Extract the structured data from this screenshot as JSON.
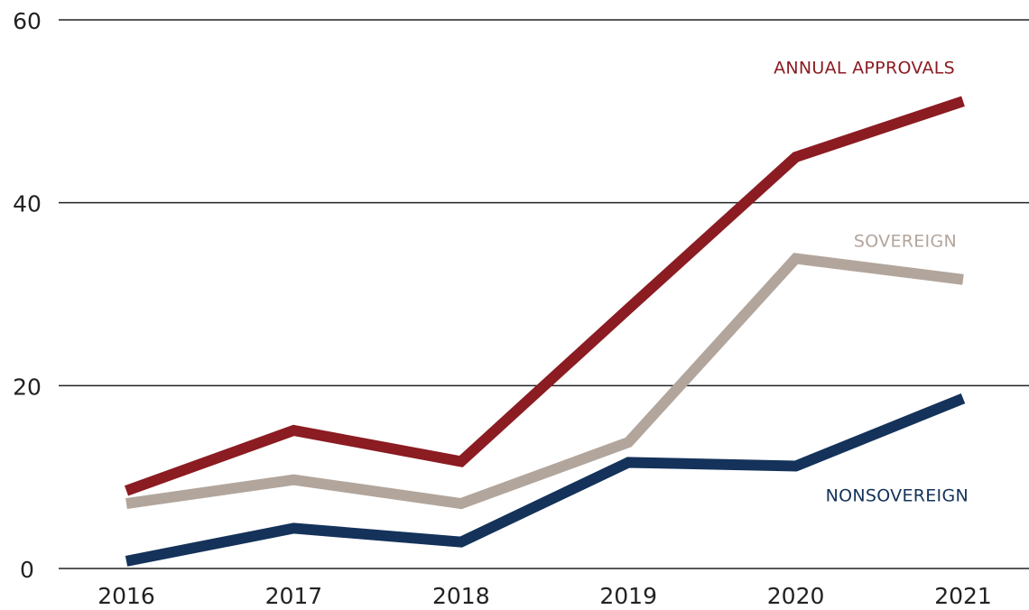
{
  "chart_data": {
    "type": "line",
    "categories": [
      "2016",
      "2017",
      "2018",
      "2019",
      "2020",
      "2021"
    ],
    "series": [
      {
        "name": "ANNUAL APPROVALS",
        "color": "#8b1c22",
        "values": [
          8.5,
          15.1,
          11.7,
          28.4,
          45.0,
          51.1
        ]
      },
      {
        "name": "SOVEREIGN",
        "color": "#b2a59c",
        "values": [
          7.1,
          9.7,
          7.1,
          13.8,
          33.9,
          31.6
        ]
      },
      {
        "name": "NONSOVEREIGN",
        "color": "#14325a",
        "values": [
          0.8,
          4.4,
          2.9,
          11.6,
          11.2,
          18.6
        ]
      }
    ],
    "ylim": [
      0,
      60
    ],
    "yticks": [
      0,
      20,
      40,
      60
    ],
    "grid": true
  }
}
